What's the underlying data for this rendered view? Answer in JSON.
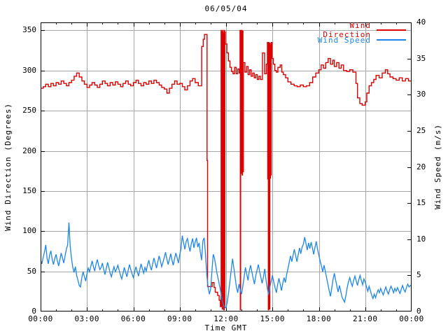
{
  "window": {
    "title": "06/05/04"
  },
  "chart_data": {
    "type": "line",
    "title": "06/05/04",
    "xlabel": "Time GMT",
    "x_axis": {
      "range_hours": [
        0,
        24
      ],
      "major_tick_hours": 3,
      "minor_tick_hours": 1,
      "tick_labels": [
        "00:00",
        "03:00",
        "06:00",
        "09:00",
        "12:00",
        "15:00",
        "18:00",
        "21:00",
        "00:00"
      ]
    },
    "y_left": {
      "label": "Wind Direction (Degrees)",
      "range": [
        0,
        360
      ],
      "ticks": [
        0,
        50,
        100,
        150,
        200,
        250,
        300,
        350
      ]
    },
    "y_right": {
      "label": "Wind Speed (m/s)",
      "range": [
        0,
        40
      ],
      "ticks": [
        0,
        5,
        10,
        15,
        20,
        25,
        30,
        35,
        40
      ]
    },
    "grid": {
      "on": true,
      "color": "#a6a6a6"
    },
    "frame_color": "#000000",
    "legend_position": "top-right-inside",
    "series": [
      {
        "name": "Wind Direction",
        "color": "#dd0000",
        "axis": "left",
        "style": "steps",
        "points": [
          [
            0.0,
            278
          ],
          [
            0.17,
            280
          ],
          [
            0.33,
            283
          ],
          [
            0.5,
            280
          ],
          [
            0.67,
            284
          ],
          [
            0.83,
            281
          ],
          [
            1.0,
            285
          ],
          [
            1.17,
            283
          ],
          [
            1.33,
            287
          ],
          [
            1.5,
            284
          ],
          [
            1.67,
            281
          ],
          [
            1.83,
            285
          ],
          [
            2.0,
            288
          ],
          [
            2.17,
            293
          ],
          [
            2.33,
            297
          ],
          [
            2.5,
            292
          ],
          [
            2.67,
            287
          ],
          [
            2.83,
            283
          ],
          [
            3.0,
            279
          ],
          [
            3.17,
            282
          ],
          [
            3.33,
            285
          ],
          [
            3.5,
            282
          ],
          [
            3.67,
            279
          ],
          [
            3.83,
            283
          ],
          [
            4.0,
            287
          ],
          [
            4.17,
            284
          ],
          [
            4.33,
            281
          ],
          [
            4.5,
            285
          ],
          [
            4.67,
            282
          ],
          [
            4.83,
            286
          ],
          [
            5.0,
            283
          ],
          [
            5.17,
            280
          ],
          [
            5.33,
            284
          ],
          [
            5.5,
            287
          ],
          [
            5.67,
            283
          ],
          [
            5.83,
            281
          ],
          [
            6.0,
            285
          ],
          [
            6.17,
            288
          ],
          [
            6.33,
            284
          ],
          [
            6.5,
            281
          ],
          [
            6.67,
            285
          ],
          [
            6.83,
            283
          ],
          [
            7.0,
            287
          ],
          [
            7.17,
            284
          ],
          [
            7.33,
            288
          ],
          [
            7.5,
            285
          ],
          [
            7.67,
            282
          ],
          [
            7.83,
            279
          ],
          [
            8.0,
            277
          ],
          [
            8.17,
            272
          ],
          [
            8.33,
            278
          ],
          [
            8.5,
            283
          ],
          [
            8.67,
            287
          ],
          [
            8.83,
            283
          ],
          [
            9.0,
            284
          ],
          [
            9.17,
            280
          ],
          [
            9.33,
            276
          ],
          [
            9.5,
            281
          ],
          [
            9.67,
            287
          ],
          [
            9.83,
            290
          ],
          [
            10.0,
            285
          ],
          [
            10.2,
            281
          ],
          [
            10.42,
            330
          ],
          [
            10.52,
            339
          ],
          [
            10.6,
            345
          ],
          [
            10.77,
            188
          ],
          [
            10.8,
            31
          ],
          [
            11.1,
            36
          ],
          [
            11.22,
            30
          ],
          [
            11.3,
            24
          ],
          [
            11.45,
            20
          ],
          [
            11.55,
            14
          ],
          [
            11.63,
            6
          ],
          [
            11.68,
            350
          ],
          [
            11.7,
            6
          ],
          [
            11.73,
            348
          ],
          [
            11.75,
            3
          ],
          [
            11.78,
            350
          ],
          [
            11.8,
            8
          ],
          [
            11.83,
            347
          ],
          [
            11.85,
            2
          ],
          [
            11.88,
            350
          ],
          [
            11.9,
            5
          ],
          [
            11.92,
            348
          ],
          [
            11.95,
            333
          ],
          [
            12.05,
            322
          ],
          [
            12.15,
            312
          ],
          [
            12.25,
            304
          ],
          [
            12.35,
            299
          ],
          [
            12.45,
            296
          ],
          [
            12.55,
            304
          ],
          [
            12.65,
            296
          ],
          [
            12.75,
            302
          ],
          [
            12.85,
            297
          ],
          [
            12.9,
            350
          ],
          [
            12.92,
            2
          ],
          [
            12.94,
            350
          ],
          [
            12.96,
            172
          ],
          [
            12.98,
            348
          ],
          [
            13.0,
            175
          ],
          [
            13.02,
            350
          ],
          [
            13.04,
            170
          ],
          [
            13.06,
            349
          ],
          [
            13.09,
            174
          ],
          [
            13.12,
            310
          ],
          [
            13.22,
            298
          ],
          [
            13.32,
            305
          ],
          [
            13.42,
            295
          ],
          [
            13.52,
            301
          ],
          [
            13.62,
            293
          ],
          [
            13.72,
            297
          ],
          [
            13.82,
            291
          ],
          [
            13.92,
            295
          ],
          [
            14.02,
            289
          ],
          [
            14.12,
            293
          ],
          [
            14.22,
            289
          ],
          [
            14.35,
            322
          ],
          [
            14.49,
            296
          ],
          [
            14.6,
            308
          ],
          [
            14.67,
            335
          ],
          [
            14.69,
            165
          ],
          [
            14.71,
            333
          ],
          [
            14.73,
            2
          ],
          [
            14.75,
            335
          ],
          [
            14.77,
            168
          ],
          [
            14.79,
            330
          ],
          [
            14.81,
            3
          ],
          [
            14.83,
            334
          ],
          [
            14.85,
            166
          ],
          [
            14.87,
            332
          ],
          [
            14.89,
            170
          ],
          [
            14.92,
            335
          ],
          [
            14.97,
            315
          ],
          [
            15.05,
            308
          ],
          [
            15.15,
            300
          ],
          [
            15.25,
            298
          ],
          [
            15.35,
            304
          ],
          [
            15.5,
            307
          ],
          [
            15.6,
            298
          ],
          [
            15.7,
            295
          ],
          [
            15.85,
            291
          ],
          [
            16.0,
            286
          ],
          [
            16.2,
            283
          ],
          [
            16.4,
            281
          ],
          [
            16.6,
            280
          ],
          [
            16.8,
            282
          ],
          [
            17.0,
            280
          ],
          [
            17.2,
            281
          ],
          [
            17.4,
            285
          ],
          [
            17.6,
            292
          ],
          [
            17.8,
            297
          ],
          [
            18.0,
            301
          ],
          [
            18.15,
            307
          ],
          [
            18.3,
            303
          ],
          [
            18.45,
            310
          ],
          [
            18.6,
            315
          ],
          [
            18.75,
            308
          ],
          [
            18.9,
            313
          ],
          [
            19.0,
            305
          ],
          [
            19.15,
            310
          ],
          [
            19.3,
            303
          ],
          [
            19.45,
            307
          ],
          [
            19.6,
            300
          ],
          [
            19.8,
            299
          ],
          [
            20.0,
            301
          ],
          [
            20.2,
            298
          ],
          [
            20.4,
            284
          ],
          [
            20.5,
            266
          ],
          [
            20.65,
            259
          ],
          [
            20.8,
            257
          ],
          [
            21.0,
            261
          ],
          [
            21.1,
            272
          ],
          [
            21.25,
            281
          ],
          [
            21.4,
            285
          ],
          [
            21.55,
            289
          ],
          [
            21.7,
            294
          ],
          [
            21.9,
            291
          ],
          [
            22.1,
            297
          ],
          [
            22.3,
            301
          ],
          [
            22.45,
            296
          ],
          [
            22.6,
            292
          ],
          [
            22.8,
            290
          ],
          [
            23.0,
            288
          ],
          [
            23.2,
            291
          ],
          [
            23.4,
            287
          ],
          [
            23.6,
            290
          ],
          [
            23.8,
            287
          ],
          [
            24.0,
            289
          ]
        ]
      },
      {
        "name": "Wind Speed",
        "color": "#1c86ee",
        "axis": "right",
        "style": "lines",
        "t0_hours": 0,
        "dt_hours": 0.083333,
        "values": [
          7.2,
          6.6,
          7.5,
          8.2,
          9.2,
          7.4,
          6.6,
          7.8,
          8.4,
          7.2,
          6.5,
          7.3,
          7.9,
          7.0,
          6.3,
          7.2,
          8.1,
          7.4,
          6.7,
          7.7,
          8.6,
          9.2,
          12.3,
          9.0,
          7.3,
          6.1,
          5.4,
          6.2,
          5.0,
          4.3,
          3.6,
          3.4,
          4.7,
          5.5,
          4.8,
          4.2,
          5.2,
          6.0,
          5.5,
          6.3,
          7.0,
          6.2,
          5.6,
          6.5,
          7.2,
          6.4,
          5.8,
          6.1,
          6.7,
          5.8,
          5.1,
          6.0,
          6.8,
          6.1,
          5.3,
          4.8,
          5.6,
          6.2,
          5.5,
          5.9,
          6.4,
          5.7,
          5.0,
          4.5,
          5.3,
          6.1,
          5.4,
          4.8,
          5.7,
          6.5,
          5.8,
          5.2,
          4.7,
          5.4,
          6.2,
          5.5,
          4.9,
          5.8,
          6.6,
          5.9,
          5.3,
          6.1,
          5.6,
          6.4,
          7.1,
          6.3,
          5.7,
          6.6,
          7.4,
          6.7,
          6.0,
          6.9,
          7.7,
          7.0,
          6.2,
          6.8,
          7.5,
          8.2,
          7.3,
          6.5,
          7.2,
          8.0,
          7.1,
          6.4,
          7.3,
          8.1,
          7.4,
          6.7,
          7.8,
          8.7,
          10.5,
          9.5,
          8.6,
          9.7,
          10.1,
          9.1,
          8.3,
          9.4,
          10.1,
          8.8,
          9.6,
          10.2,
          8.9,
          9.5,
          8.2,
          7.1,
          9.8,
          10.2,
          7.9,
          5.1,
          3.4,
          2.4,
          3.1,
          5.6,
          7.9,
          7.4,
          6.3,
          5.2,
          4.4,
          3.5,
          2.6,
          1.5,
          0.9,
          0.6,
          0.5,
          1.4,
          2.7,
          4.2,
          5.8,
          7.3,
          6.1,
          4.7,
          3.4,
          2.6,
          3.8,
          3.0,
          2.4,
          3.5,
          4.8,
          6.1,
          5.2,
          4.3,
          5.6,
          6.4,
          5.5,
          4.6,
          3.8,
          4.9,
          5.7,
          6.5,
          5.6,
          4.7,
          3.9,
          4.8,
          5.9,
          4.4,
          3.2,
          2.3,
          3.4,
          4.2,
          5.0,
          4.1,
          3.3,
          2.6,
          3.7,
          4.6,
          3.8,
          2.9,
          3.9,
          4.7,
          4.0,
          5.1,
          5.9,
          6.8,
          7.7,
          6.9,
          7.8,
          8.6,
          7.7,
          6.9,
          7.9,
          8.8,
          8.0,
          8.9,
          9.3,
          10.3,
          9.4,
          8.5,
          9.5,
          8.7,
          9.6,
          8.8,
          7.9,
          8.9,
          9.7,
          8.6,
          7.8,
          7.0,
          6.3,
          5.5,
          6.4,
          5.6,
          4.7,
          3.8,
          2.9,
          2.1,
          3.2,
          4.4,
          5.3,
          4.4,
          3.5,
          2.7,
          3.6,
          2.8,
          2.0,
          1.6,
          1.3,
          2.2,
          3.3,
          4.1,
          4.7,
          4.0,
          3.5,
          4.3,
          4.9,
          4.2,
          3.6,
          4.4,
          5.0,
          4.3,
          3.7,
          4.5,
          4.1,
          3.4,
          2.8,
          3.5,
          2.9,
          2.3,
          1.8,
          2.4,
          1.9,
          2.5,
          3.0,
          2.6,
          3.2,
          2.7,
          2.3,
          2.9,
          3.4,
          2.8,
          2.4,
          3.0,
          3.5,
          3.1,
          2.6,
          3.2,
          2.8,
          3.3,
          2.9,
          2.5,
          3.1,
          3.6,
          3.0,
          2.7,
          3.3,
          3.8,
          3.4,
          3.6,
          3.5
        ]
      }
    ]
  }
}
